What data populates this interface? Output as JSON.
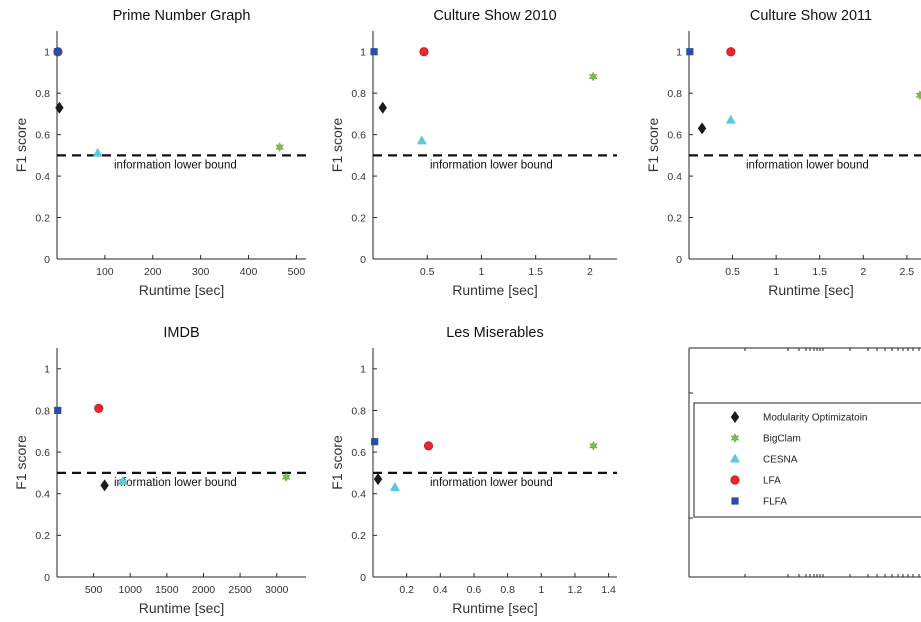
{
  "colors": {
    "Modularity Optimizatoin": "#1a1a1a",
    "BigClam": "#77c043",
    "CESNA": "#5bc8dd",
    "LFA": "#e8262d",
    "FLFA": "#2b4ea3"
  },
  "markers": {
    "Modularity Optimizatoin": "diamond",
    "BigClam": "star",
    "CESNA": "triangle",
    "LFA": "circle",
    "FLFA": "square"
  },
  "legend": {
    "placement": "center",
    "entries": [
      "Modularity Optimizatoin",
      "BigClam",
      "CESNA",
      "LFA",
      "FLFA"
    ]
  },
  "chart_data": [
    {
      "type": "scatter",
      "title": "Prime Number Graph",
      "xlabel": "Runtime [sec]",
      "ylabel": "F1 score",
      "xlim": [
        0,
        520
      ],
      "ylim": [
        0,
        1.1
      ],
      "xticks": [
        100,
        200,
        300,
        400,
        500
      ],
      "yticks": [
        0,
        0.2,
        0.4,
        0.6,
        0.8,
        1
      ],
      "reference_line": {
        "y": 0.5,
        "label": "information lower bound"
      },
      "series": [
        {
          "name": "Modularity Optimizatoin",
          "x": 5,
          "y": 0.73
        },
        {
          "name": "BigClam",
          "x": 465,
          "y": 0.54
        },
        {
          "name": "CESNA",
          "x": 85,
          "y": 0.51
        },
        {
          "name": "LFA",
          "x": 2,
          "y": 1.0
        },
        {
          "name": "FLFA",
          "x": 1,
          "y": 1.0
        }
      ]
    },
    {
      "type": "scatter",
      "title": "Culture Show 2010",
      "xlabel": "Runtime [sec]",
      "ylabel": "F1 score",
      "xlim": [
        0,
        2.25
      ],
      "ylim": [
        0,
        1.1
      ],
      "xticks": [
        0.5,
        1,
        1.5,
        2
      ],
      "yticks": [
        0,
        0.2,
        0.4,
        0.6,
        0.8,
        1
      ],
      "reference_line": {
        "y": 0.5,
        "label": "information lower bound"
      },
      "series": [
        {
          "name": "Modularity Optimizatoin",
          "x": 0.09,
          "y": 0.73
        },
        {
          "name": "BigClam",
          "x": 2.03,
          "y": 0.88
        },
        {
          "name": "CESNA",
          "x": 0.45,
          "y": 0.57
        },
        {
          "name": "LFA",
          "x": 0.47,
          "y": 1.0
        },
        {
          "name": "FLFA",
          "x": 0.01,
          "y": 1.0
        }
      ]
    },
    {
      "type": "scatter",
      "title": "Culture Show 2011",
      "xlabel": "Runtime [sec]",
      "ylabel": "F1 score",
      "xlim": [
        0,
        2.8
      ],
      "ylim": [
        0,
        1.1
      ],
      "xticks": [
        0.5,
        1,
        1.5,
        2,
        2.5
      ],
      "yticks": [
        0,
        0.2,
        0.4,
        0.6,
        0.8,
        1
      ],
      "reference_line": {
        "y": 0.5,
        "label": "information lower bound"
      },
      "series": [
        {
          "name": "Modularity Optimizatoin",
          "x": 0.15,
          "y": 0.63
        },
        {
          "name": "BigClam",
          "x": 2.65,
          "y": 0.79
        },
        {
          "name": "CESNA",
          "x": 0.48,
          "y": 0.67
        },
        {
          "name": "LFA",
          "x": 0.48,
          "y": 1.0
        },
        {
          "name": "FLFA",
          "x": 0.01,
          "y": 1.0
        }
      ]
    },
    {
      "type": "scatter",
      "title": "IMDB",
      "xlabel": "Runtime [sec]",
      "ylabel": "F1 score",
      "xlim": [
        0,
        3400
      ],
      "ylim": [
        0,
        1.1
      ],
      "xticks": [
        500,
        1000,
        1500,
        2000,
        2500,
        3000
      ],
      "yticks": [
        0,
        0.2,
        0.4,
        0.6,
        0.8,
        1
      ],
      "reference_line": {
        "y": 0.5,
        "label": "information lower bound"
      },
      "series": [
        {
          "name": "Modularity Optimizatoin",
          "x": 650,
          "y": 0.44
        },
        {
          "name": "BigClam",
          "x": 3130,
          "y": 0.48
        },
        {
          "name": "CESNA",
          "x": 900,
          "y": 0.46
        },
        {
          "name": "LFA",
          "x": 570,
          "y": 0.81
        },
        {
          "name": "FLFA",
          "x": 10,
          "y": 0.8
        }
      ]
    },
    {
      "type": "scatter",
      "title": "Les Miserables",
      "xlabel": "Runtime [sec]",
      "ylabel": "F1 score",
      "xlim": [
        0,
        1.45
      ],
      "ylim": [
        0,
        1.1
      ],
      "xticks": [
        0.2,
        0.4,
        0.6,
        0.8,
        1,
        1.2,
        1.4
      ],
      "yticks": [
        0,
        0.2,
        0.4,
        0.6,
        0.8,
        1
      ],
      "reference_line": {
        "y": 0.5,
        "label": "information lower bound"
      },
      "series": [
        {
          "name": "Modularity Optimizatoin",
          "x": 0.03,
          "y": 0.47
        },
        {
          "name": "BigClam",
          "x": 1.31,
          "y": 0.63
        },
        {
          "name": "CESNA",
          "x": 0.13,
          "y": 0.43
        },
        {
          "name": "LFA",
          "x": 0.33,
          "y": 0.63
        },
        {
          "name": "FLFA",
          "x": 0.01,
          "y": 0.65
        }
      ]
    }
  ]
}
